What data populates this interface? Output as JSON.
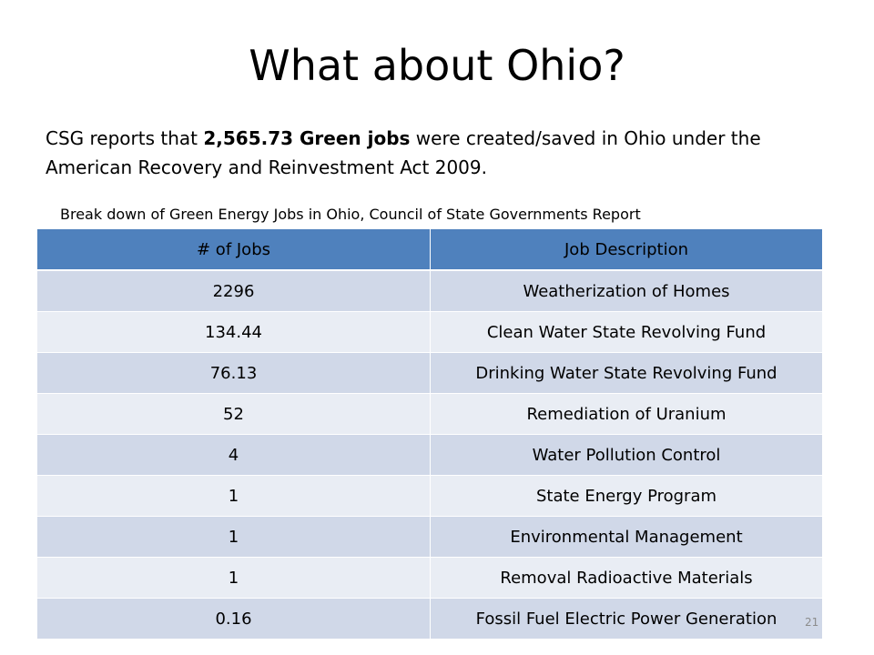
{
  "slide": {
    "title": "What about Ohio?",
    "intro": {
      "part1": "CSG reports that ",
      "bold1": "2,565.73 Green jobs",
      "part2": " were created/saved in Ohio under the American Recovery and Reinvestment Act 2009."
    },
    "caption": "Break down of Green Energy Jobs in Ohio, Council of State Governments Report",
    "page_number": "21"
  },
  "table": {
    "headers": [
      "# of Jobs",
      "Job Description"
    ],
    "rows": [
      [
        "2296",
        "Weatherization of Homes"
      ],
      [
        "134.44",
        "Clean Water State Revolving Fund"
      ],
      [
        "76.13",
        "Drinking Water State Revolving Fund"
      ],
      [
        "52",
        "Remediation of Uranium"
      ],
      [
        "4",
        "Water Pollution Control"
      ],
      [
        "1",
        "State Energy Program"
      ],
      [
        "1",
        "Environmental Management"
      ],
      [
        "1",
        "Removal Radioactive Materials"
      ],
      [
        "0.16",
        "Fossil Fuel Electric Power Generation"
      ]
    ]
  },
  "colors": {
    "header": "#4f81bd",
    "row_odd": "#d0d8e8",
    "row_even": "#e9edf4"
  }
}
